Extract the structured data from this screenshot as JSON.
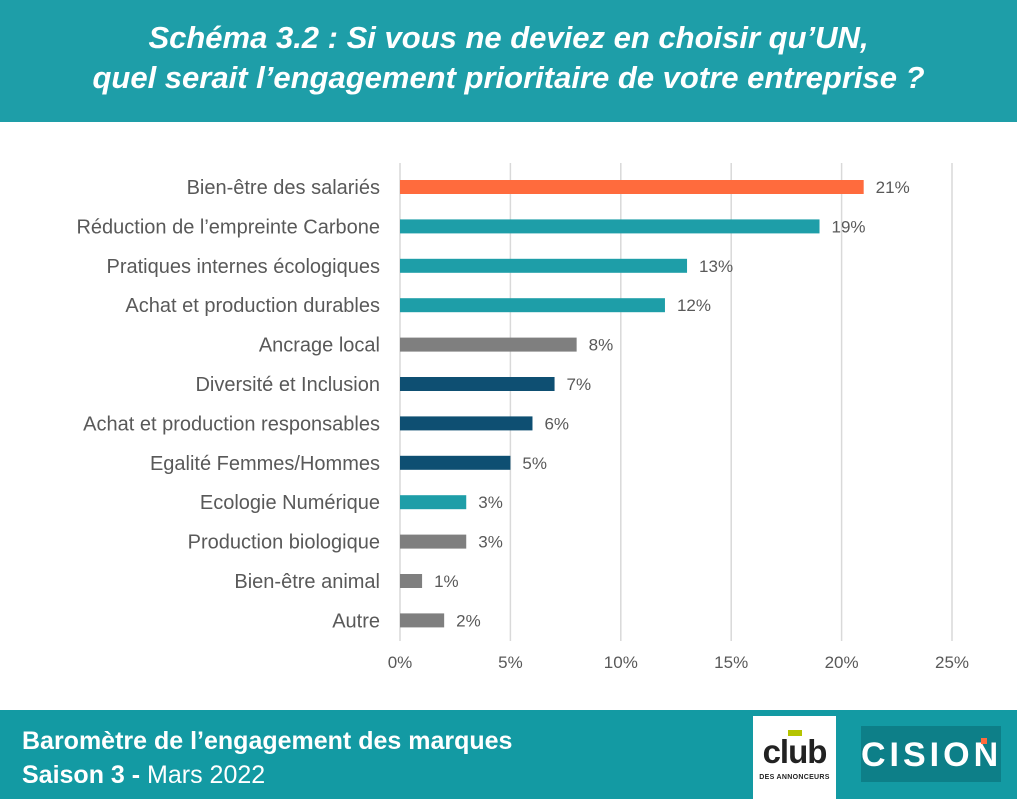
{
  "header": {
    "title_line1": "Schéma 3.2 : Si vous ne deviez en choisir qu’UN,",
    "title_line2": "quel serait l’engagement prioritaire de votre entreprise ?"
  },
  "chart_data": {
    "type": "bar",
    "orientation": "horizontal",
    "title": "Schéma 3.2 : Si vous ne deviez en choisir qu’UN, quel serait l’engagement prioritaire de votre entreprise ?",
    "categories": [
      "Bien-être des salariés",
      "Réduction de l’empreinte Carbone",
      "Pratiques internes écologiques",
      "Achat et production durables",
      "Ancrage local",
      "Diversité et Inclusion",
      "Achat et production responsables",
      "Egalité Femmes/Hommes",
      "Ecologie Numérique",
      "Production biologique",
      "Bien-être animal",
      "Autre"
    ],
    "values": [
      21,
      19,
      13,
      12,
      8,
      7,
      6,
      5,
      3,
      3,
      1,
      2
    ],
    "value_labels": [
      "21%",
      "19%",
      "13%",
      "12%",
      "8%",
      "7%",
      "6%",
      "5%",
      "3%",
      "3%",
      "1%",
      "2%"
    ],
    "bar_colors": [
      "#ff6b3d",
      "#1e9ea8",
      "#1e9ea8",
      "#1e9ea8",
      "#7f7f7f",
      "#0e4f72",
      "#0e4f72",
      "#0e4f72",
      "#1e9ea8",
      "#7f7f7f",
      "#7f7f7f",
      "#7f7f7f"
    ],
    "xlim": [
      0,
      25
    ],
    "x_ticks": [
      0,
      5,
      10,
      15,
      20,
      25
    ],
    "x_tick_labels": [
      "0%",
      "5%",
      "10%",
      "15%",
      "20%",
      "25%"
    ],
    "grid": "vertical",
    "legend": "none"
  },
  "footer": {
    "line1": "Baromètre de l’engagement des marques",
    "line2_bold": "Saison 3 -",
    "line2_rest": " Mars 2022"
  },
  "logos": {
    "club_word": "club",
    "club_sub": "DES ANNONCEURS",
    "cision_word": "CISION"
  },
  "colors": {
    "header_bg": "#1e9ea8",
    "footer_bg": "#139aa3",
    "grid": "#d9d9d9",
    "label_text": "#595959"
  }
}
